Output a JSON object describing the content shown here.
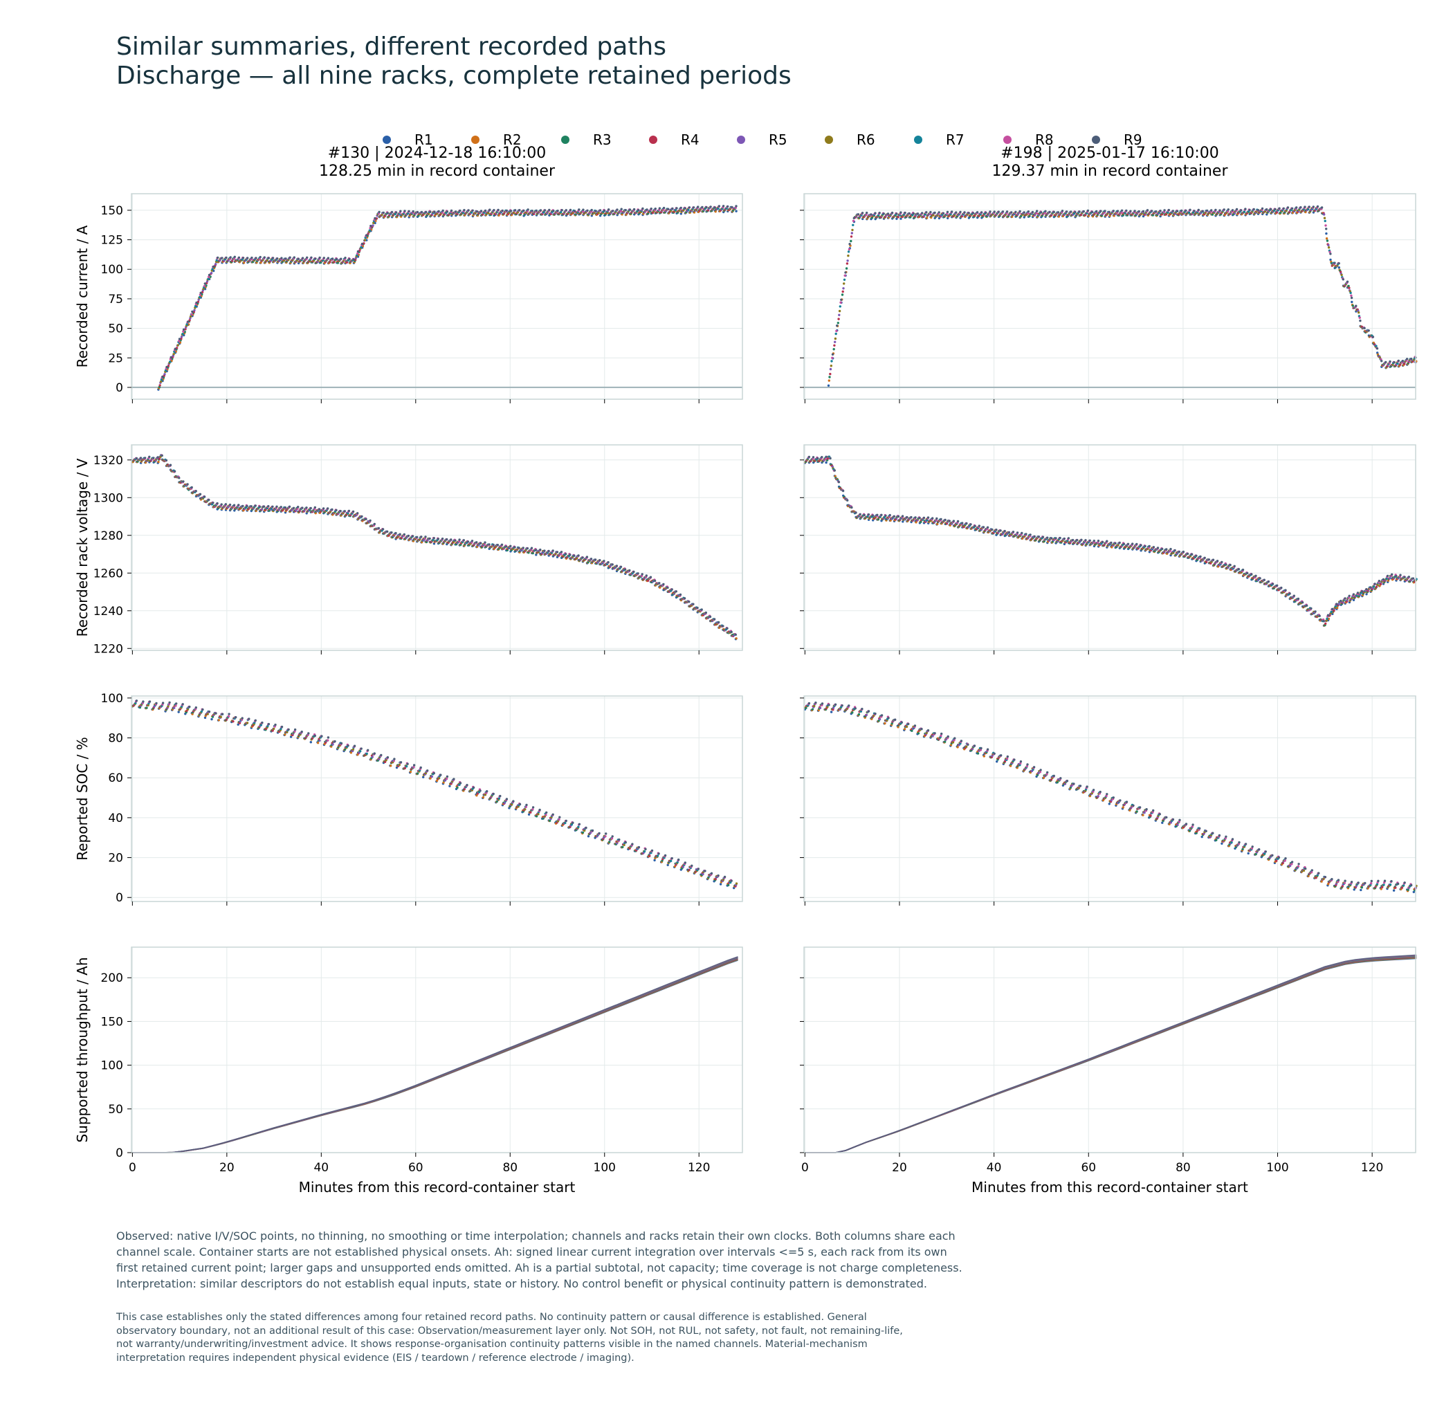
{
  "title": "Similar summaries, different recorded paths",
  "subtitle": "Discharge — all nine racks, complete retained periods",
  "legend": {
    "items": [
      {
        "label": "R1",
        "color": "#2a5fa8"
      },
      {
        "label": "R2",
        "color": "#d07019"
      },
      {
        "label": "R3",
        "color": "#1f8260"
      },
      {
        "label": "R4",
        "color": "#b9304e"
      },
      {
        "label": "R5",
        "color": "#7d57b5"
      },
      {
        "label": "R6",
        "color": "#8f7b1c"
      },
      {
        "label": "R7",
        "color": "#14839a"
      },
      {
        "label": "R8",
        "color": "#c54f9f"
      },
      {
        "label": "R9",
        "color": "#4c5d78"
      }
    ]
  },
  "columns": [
    {
      "title_line1": "#130  |  2024-12-18 16:10:00",
      "title_line2": "128.25 min in record container",
      "xmax": 128.25
    },
    {
      "title_line1": "#198  |  2025-01-17 16:10:00",
      "title_line2": "129.37 min in record container",
      "xmax": 129.37
    }
  ],
  "xlabel": "Minutes from this record-container start",
  "x_ticks": [
    0,
    20,
    40,
    60,
    80,
    100,
    120
  ],
  "rows": [
    {
      "ylabel": "Recorded current / A",
      "ylim": [
        -10,
        164
      ],
      "yticks": [
        0,
        25,
        50,
        75,
        100,
        125,
        150
      ]
    },
    {
      "ylabel": "Recorded rack voltage / V",
      "ylim": [
        1219,
        1328
      ],
      "yticks": [
        1220,
        1240,
        1260,
        1280,
        1300,
        1320
      ]
    },
    {
      "ylabel": "Reported SOC / %",
      "ylim": [
        -2,
        101
      ],
      "yticks": [
        0,
        20,
        40,
        60,
        80,
        100
      ]
    },
    {
      "ylabel": "Supported throughput / Ah",
      "ylim": [
        0,
        235
      ],
      "yticks": [
        0,
        50,
        100,
        150,
        200
      ]
    }
  ],
  "chart_data": {
    "type": "scatter",
    "layout": "4 rows x 2 columns small multiples, shared y per row",
    "grid": true,
    "legend_position": "top-center",
    "panels": [
      {
        "column": "#130",
        "channel": "current_A",
        "style": "points",
        "x": [
          5.5,
          18,
          47,
          52,
          60,
          80,
          100,
          110,
          118,
          122,
          128
        ],
        "y": [
          0,
          108,
          107,
          146,
          147,
          148,
          148,
          149,
          150,
          151,
          151
        ],
        "spread": 4
      },
      {
        "column": "#198",
        "channel": "current_A",
        "style": "points",
        "x": [
          5,
          10.5,
          30,
          60,
          90,
          105,
          109,
          109.8,
          110.5,
          111.5,
          113,
          114,
          115,
          116,
          117,
          117.5,
          118,
          119,
          120,
          121,
          122,
          123,
          126,
          129.37
        ],
        "y": [
          4,
          145,
          146,
          147,
          148,
          150,
          151,
          148,
          125,
          104,
          103,
          87,
          87,
          68,
          66,
          54,
          50,
          47,
          42,
          32,
          20,
          19,
          20,
          24
        ],
        "spread": 4
      },
      {
        "column": "#130",
        "channel": "voltage_V",
        "style": "points",
        "x": [
          0,
          5.5,
          6,
          8,
          10,
          13,
          17,
          19,
          30,
          40,
          47,
          50,
          52,
          55,
          60,
          70,
          80,
          90,
          100,
          110,
          115,
          120,
          125,
          128
        ],
        "y": [
          1320,
          1320,
          1322,
          1316,
          1309,
          1303,
          1296,
          1295,
          1294,
          1293,
          1291,
          1287,
          1283,
          1280,
          1278,
          1276,
          1273,
          1270,
          1265,
          1256,
          1249,
          1240,
          1231,
          1226
        ],
        "spread": 2.5
      },
      {
        "column": "#198",
        "channel": "voltage_V",
        "style": "points",
        "x": [
          0,
          4.5,
          5,
          7,
          9,
          11,
          20,
          30,
          40,
          50,
          60,
          70,
          80,
          90,
          100,
          105,
          109,
          110,
          111,
          113,
          116,
          120,
          124,
          129.37
        ],
        "y": [
          1320,
          1320,
          1322,
          1308,
          1297,
          1290,
          1289,
          1287,
          1282,
          1278,
          1276,
          1274,
          1270,
          1263,
          1252,
          1244,
          1236,
          1233,
          1238,
          1244,
          1247,
          1252,
          1258,
          1256
        ],
        "spread": 2.5
      },
      {
        "column": "#130",
        "channel": "soc_pct",
        "style": "points",
        "x": [
          0,
          10,
          20,
          40,
          60,
          80,
          100,
          120,
          128
        ],
        "y": [
          97,
          95,
          90,
          79,
          64,
          47,
          30,
          13,
          6
        ],
        "spread": 3.5
      },
      {
        "column": "#198",
        "channel": "soc_pct",
        "style": "points",
        "x": [
          0,
          7,
          10,
          20,
          40,
          60,
          80,
          100,
          110,
          112,
          116,
          120,
          124,
          128,
          129.37
        ],
        "y": [
          96,
          95,
          94,
          87,
          71,
          53,
          36,
          19,
          9,
          7,
          6,
          6,
          6,
          5,
          5
        ],
        "spread": 3.5
      },
      {
        "column": "#130",
        "channel": "throughput_Ah",
        "style": "lines",
        "x": [
          0,
          8,
          10,
          15,
          20,
          30,
          40,
          50,
          55,
          60,
          80,
          100,
          120,
          128
        ],
        "y": [
          0,
          0,
          1,
          5,
          12,
          28,
          43,
          57,
          66,
          76,
          119,
          162,
          205,
          222
        ],
        "spread": 4
      },
      {
        "column": "#198",
        "channel": "throughput_Ah",
        "style": "lines",
        "x": [
          0,
          7,
          9,
          12,
          20,
          40,
          60,
          80,
          100,
          110,
          115,
          120,
          129.37
        ],
        "y": [
          0,
          0,
          3,
          10,
          25,
          66,
          106,
          148,
          190,
          211,
          218,
          221,
          224
        ],
        "spread": 4
      }
    ]
  },
  "note1": "Observed: native I/V/SOC points, no thinning, no smoothing or time interpolation; channels and racks retain their own clocks. Both columns share each\nchannel scale. Container starts are not established physical onsets. Ah: signed linear current integration over intervals <=5 s, each rack from its own\nfirst retained current point; larger gaps and unsupported ends omitted. Ah is a partial subtotal, not capacity; time coverage is not charge completeness.\nInterpretation: similar descriptors do not establish equal inputs, state or history. No control benefit or physical continuity pattern is demonstrated.",
  "note2": "This case establishes only the stated differences among four retained record paths. No continuity pattern or causal difference is established. General\nobservatory boundary, not an additional result of this case: Observation/measurement layer only. Not SOH, not RUL, not safety, not fault, not remaining-life,\nnot warranty/underwriting/investment advice. It shows response-organisation continuity patterns visible in the named channels. Material-mechanism\ninterpretation requires independent physical evidence (EIS / teardown / reference electrode / imaging)."
}
